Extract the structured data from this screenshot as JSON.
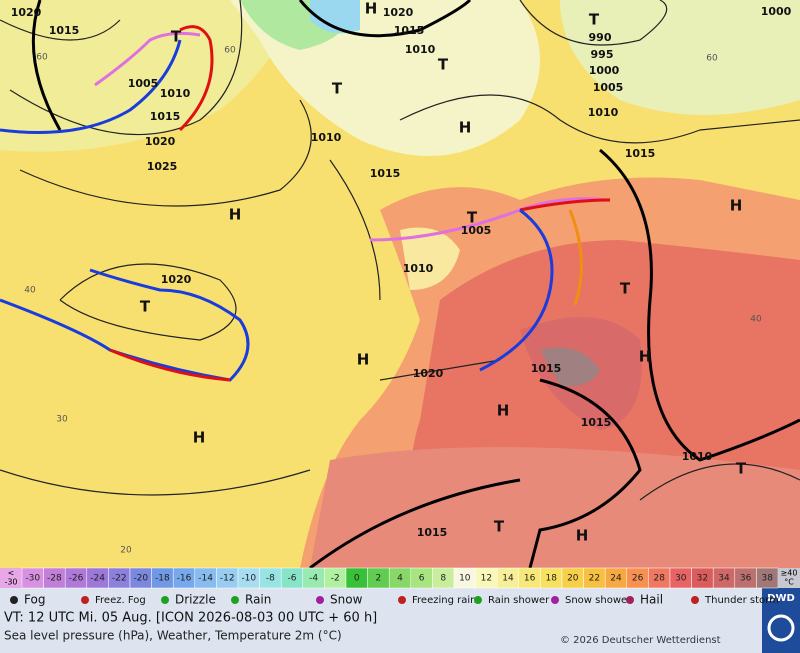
{
  "map": {
    "isobar_labels": [
      "1020",
      "1015",
      "1005",
      "1010",
      "1015",
      "1020",
      "1025",
      "1010",
      "1015",
      "1005",
      "1010",
      "1020",
      "1020",
      "1015",
      "1015",
      "1010",
      "1015",
      "1015",
      "1000",
      "990",
      "995",
      "1000",
      "1005",
      "1010",
      "1020",
      "1015",
      "1010"
    ],
    "centers": [
      "H",
      "T",
      "T",
      "T",
      "T",
      "H",
      "H",
      "T",
      "H",
      "T",
      "T",
      "H",
      "H",
      "H",
      "H",
      "T",
      "T",
      "H"
    ],
    "grid_labels": [
      "60",
      "60",
      "40",
      "30",
      "20",
      "40",
      "60"
    ]
  },
  "scale": {
    "low_symbol": "<",
    "low": "-30",
    "values": [
      -30,
      -28,
      -26,
      -24,
      -22,
      -20,
      -18,
      -16,
      -14,
      -12,
      -10,
      -8,
      -6,
      -4,
      -2,
      0,
      2,
      4,
      6,
      8,
      10,
      12,
      14,
      16,
      18,
      20,
      22,
      24,
      26,
      28,
      30,
      32,
      34,
      36,
      38
    ],
    "colors": [
      "#d890e0",
      "#c080d8",
      "#b078d8",
      "#9c78d8",
      "#8c80dc",
      "#7c88e0",
      "#7098e4",
      "#78a8ec",
      "#88bcf0",
      "#98ccf0",
      "#a8dcf0",
      "#98e4e4",
      "#88e4c8",
      "#98eab0",
      "#b0f0a0",
      "#38c038",
      "#60cc50",
      "#88d868",
      "#a8e480",
      "#c8ee9c",
      "#f8f8e0",
      "#f8f8b8",
      "#f8f098",
      "#f8e878",
      "#f8e060",
      "#f8d048",
      "#f8c040",
      "#f8a840",
      "#f89050",
      "#f07860",
      "#e86464",
      "#dc5c5c",
      "#d06868",
      "#bc7070",
      "#a07878"
    ],
    "high_symbol": "≥40",
    "high_unit": "°C",
    "low_color": "#e8a8e8",
    "high_color": "#c8c8d0"
  },
  "legend": [
    "Fog",
    "Freez. Fog",
    "Drizzle",
    "Rain",
    "Snow",
    "Freezing rain",
    "Rain shower",
    "Snow shower",
    "Hail",
    "Thunder storm"
  ],
  "footer": {
    "valid": "VT: 12 UTC Mi.  05 Aug. [ICON 2026-08-03  00 UTC + 60 h]",
    "subtitle": "Sea level pressure (hPa), Weather, Temperature 2m (°C)",
    "copyright": "© 2026 Deutscher Wetterdienst",
    "logo": "DWD"
  }
}
